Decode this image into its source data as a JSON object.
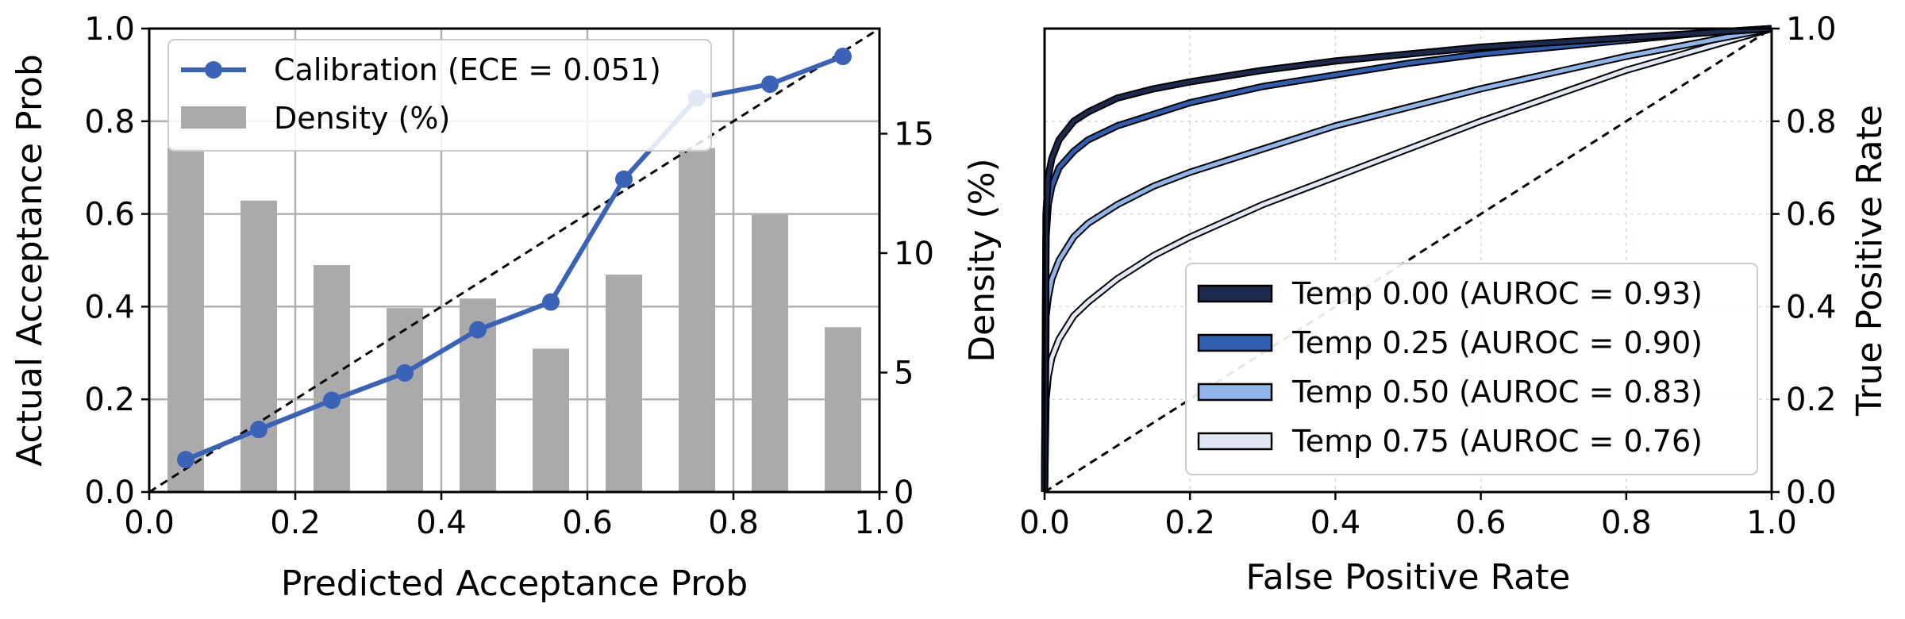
{
  "chart_data": [
    {
      "type": "bar+line",
      "title": "",
      "xlabel": "Predicted Acceptance Prob",
      "ylabel": "Actual Acceptance Prob",
      "y2label": "Density (%)",
      "xlim": [
        0,
        1
      ],
      "ylim": [
        0,
        1
      ],
      "y2lim": [
        0,
        19.4
      ],
      "x_ticks": [
        "0.0",
        "0.2",
        "0.4",
        "0.6",
        "0.8",
        "1.0"
      ],
      "y_ticks": [
        "0.0",
        "0.2",
        "0.4",
        "0.6",
        "0.8",
        "1.0"
      ],
      "y2_ticks": [
        "0",
        "5",
        "10",
        "15"
      ],
      "grid": true,
      "legend_position": "top-left",
      "series": [
        {
          "name": "Calibration (ECE = 0.051)",
          "type": "line",
          "color": "#3a63b8",
          "x": [
            0.05,
            0.15,
            0.25,
            0.35,
            0.45,
            0.55,
            0.65,
            0.75,
            0.85,
            0.95
          ],
          "y": [
            0.07,
            0.135,
            0.198,
            0.257,
            0.35,
            0.41,
            0.675,
            0.85,
            0.88,
            0.94
          ]
        },
        {
          "name": "Density (%)",
          "type": "bar",
          "axis": "y2",
          "color": "#aaaaaa",
          "x": [
            0.05,
            0.15,
            0.25,
            0.35,
            0.45,
            0.55,
            0.65,
            0.75,
            0.85,
            0.95
          ],
          "values": [
            14.4,
            12.2,
            9.5,
            7.7,
            8.1,
            6.0,
            9.1,
            14.4,
            11.6,
            6.9
          ]
        }
      ],
      "reference_line": "diagonal"
    },
    {
      "type": "line",
      "title": "",
      "xlabel": "False Positive Rate",
      "ylabel": "True Positive Rate",
      "xlim": [
        0,
        1
      ],
      "ylim": [
        0,
        1
      ],
      "x_ticks": [
        "0.0",
        "0.2",
        "0.4",
        "0.6",
        "0.8",
        "1.0"
      ],
      "y_ticks": [
        "0.0",
        "0.2",
        "0.4",
        "0.6",
        "0.8",
        "1.0"
      ],
      "grid": true,
      "legend_position": "lower-right",
      "series": [
        {
          "name": "Temp 0.00 (AUROC = 0.93)",
          "color": "#1c2b4d",
          "x": [
            0,
            0.002,
            0.005,
            0.01,
            0.02,
            0.04,
            0.06,
            0.1,
            0.15,
            0.2,
            0.3,
            0.4,
            0.5,
            0.6,
            0.7,
            0.8,
            0.9,
            1.0
          ],
          "y": [
            0,
            0.6,
            0.68,
            0.72,
            0.76,
            0.8,
            0.82,
            0.85,
            0.87,
            0.885,
            0.91,
            0.93,
            0.945,
            0.96,
            0.97,
            0.98,
            0.99,
            1.0
          ]
        },
        {
          "name": "Temp 0.25 (AUROC = 0.90)",
          "color": "#2f5db0",
          "x": [
            0,
            0.002,
            0.005,
            0.01,
            0.02,
            0.04,
            0.06,
            0.1,
            0.15,
            0.2,
            0.3,
            0.4,
            0.5,
            0.6,
            0.7,
            0.8,
            0.9,
            1.0
          ],
          "y": [
            0,
            0.55,
            0.62,
            0.66,
            0.7,
            0.735,
            0.76,
            0.79,
            0.815,
            0.84,
            0.875,
            0.9,
            0.925,
            0.945,
            0.96,
            0.975,
            0.99,
            1.0
          ]
        },
        {
          "name": "Temp 0.50 (AUROC = 0.83)",
          "color": "#8fb5ea",
          "x": [
            0,
            0.002,
            0.005,
            0.01,
            0.02,
            0.04,
            0.06,
            0.1,
            0.15,
            0.2,
            0.3,
            0.4,
            0.5,
            0.6,
            0.7,
            0.8,
            0.9,
            1.0
          ],
          "y": [
            0,
            0.38,
            0.42,
            0.46,
            0.5,
            0.55,
            0.58,
            0.62,
            0.66,
            0.69,
            0.74,
            0.79,
            0.83,
            0.87,
            0.905,
            0.94,
            0.97,
            1.0
          ]
        },
        {
          "name": "Temp 0.75 (AUROC = 0.76)",
          "color": "#e2e8f3",
          "x": [
            0,
            0.002,
            0.005,
            0.01,
            0.02,
            0.04,
            0.06,
            0.1,
            0.15,
            0.2,
            0.3,
            0.4,
            0.5,
            0.6,
            0.7,
            0.8,
            0.9,
            1.0
          ],
          "y": [
            0,
            0.2,
            0.25,
            0.29,
            0.33,
            0.38,
            0.41,
            0.46,
            0.51,
            0.55,
            0.62,
            0.68,
            0.74,
            0.8,
            0.855,
            0.91,
            0.955,
            1.0
          ]
        }
      ],
      "reference_line": "diagonal"
    }
  ]
}
